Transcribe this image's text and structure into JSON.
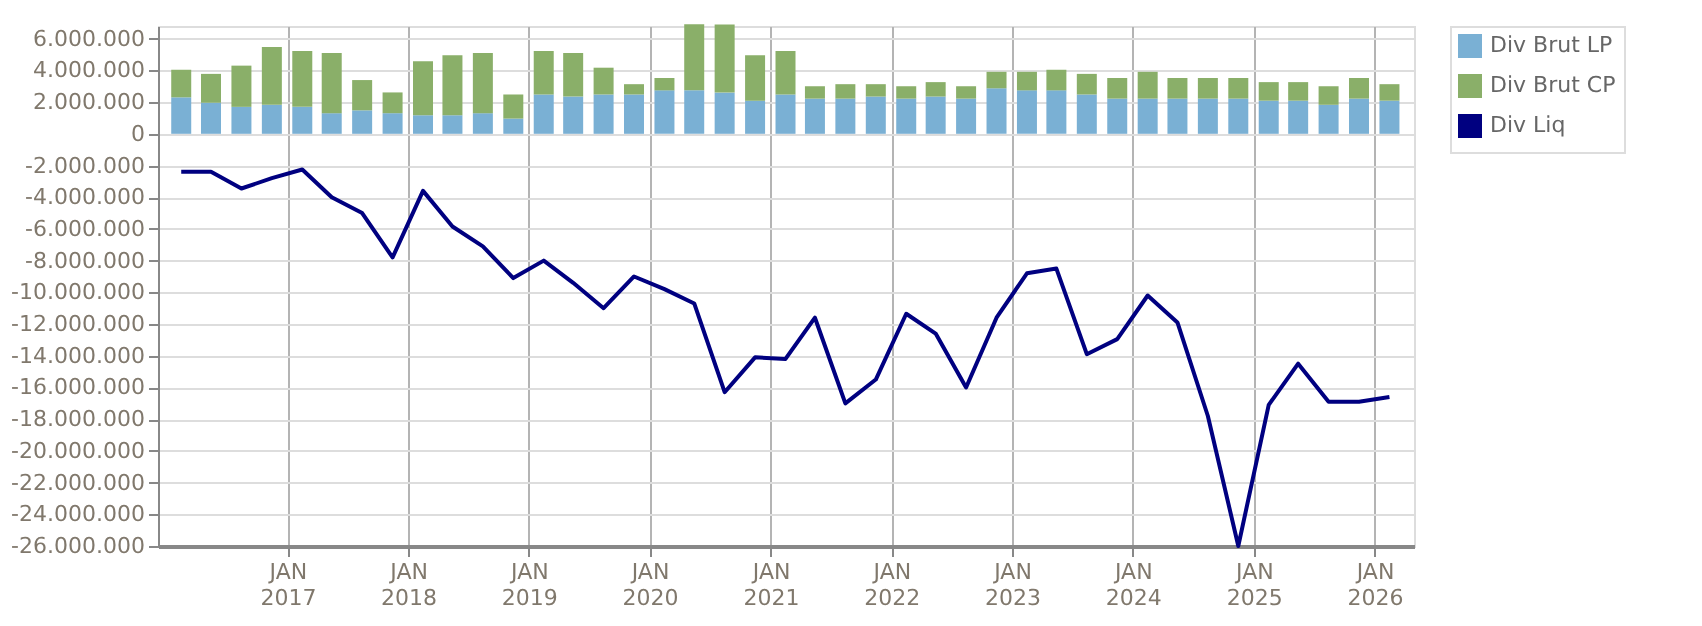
{
  "chart_data": {
    "type": "bar",
    "stacked": true,
    "x": [
      "2016-02-15",
      "2016-05-15",
      "2016-08-15",
      "2016-11-15",
      "2017-02-15",
      "2017-05-15",
      "2017-08-15",
      "2017-11-15",
      "2018-02-15",
      "2018-05-15",
      "2018-08-15",
      "2018-11-15",
      "2019-02-15",
      "2019-05-15",
      "2019-08-15",
      "2019-11-15",
      "2020-02-15",
      "2020-05-15",
      "2020-08-15",
      "2020-11-15",
      "2021-02-15",
      "2021-05-15",
      "2021-08-15",
      "2021-11-15",
      "2022-02-15",
      "2022-05-15",
      "2022-08-15",
      "2022-11-15",
      "2023-02-15",
      "2023-05-15",
      "2023-08-15",
      "2023-11-15",
      "2024-02-15",
      "2024-05-15",
      "2024-08-15",
      "2024-11-15",
      "2025-02-15",
      "2025-05-15",
      "2025-08-15",
      "2025-11-15",
      "2026-02-15"
    ],
    "series": [
      {
        "name": "Div Brut LP",
        "color": "#7ab0d4",
        "values": [
          2300000,
          1960000,
          1700000,
          1830000,
          1700000,
          1300000,
          1480000,
          1300000,
          1170000,
          1170000,
          1300000,
          960000,
          2480000,
          2350000,
          2480000,
          2480000,
          2740000,
          2740000,
          2600000,
          2090000,
          2480000,
          2220000,
          2220000,
          2350000,
          2220000,
          2350000,
          2220000,
          2870000,
          2740000,
          2740000,
          2480000,
          2220000,
          2220000,
          2220000,
          2220000,
          2220000,
          2090000,
          2090000,
          1830000,
          2220000,
          2090000
        ]
      },
      {
        "name": "Div Brut CP",
        "color": "#8aaf69",
        "values": [
          1740000,
          1820000,
          2600000,
          3650000,
          3520000,
          3790000,
          1910000,
          1310000,
          3400000,
          3790000,
          3790000,
          1520000,
          2740000,
          2740000,
          1690000,
          650000,
          780000,
          4170000,
          4300000,
          2870000,
          2740000,
          780000,
          910000,
          780000,
          780000,
          910000,
          780000,
          1040000,
          1170000,
          1300000,
          1300000,
          1300000,
          1690000,
          1300000,
          1300000,
          1300000,
          1170000,
          1170000,
          1170000,
          1300000,
          1040000
        ]
      },
      {
        "name": "Div Liq",
        "type": "line",
        "color": "#000080",
        "values": [
          -2400000,
          -2400000,
          -3450000,
          -2800000,
          -2250000,
          -4000000,
          -5000000,
          -7800000,
          -3600000,
          -5850000,
          -7100000,
          -9100000,
          -8000000,
          -9400000,
          -11000000,
          -9000000,
          -9800000,
          -10700000,
          -16300000,
          -14100000,
          -14200000,
          -11600000,
          -17000000,
          -15500000,
          -11350000,
          -12600000,
          -16000000,
          -11600000,
          -8800000,
          -8500000,
          -13900000,
          -12950000,
          -10200000,
          -11900000,
          -17800000,
          -26000000,
          -17100000,
          -14500000,
          -16900000,
          -16900000,
          -16600000
        ]
      }
    ],
    "xlim": [
      "2016-01-06",
      "2026-03-31"
    ],
    "xticks": [
      {
        "value": "2017-01-01",
        "label": "JAN 2017"
      },
      {
        "value": "2018-01-01",
        "label": "JAN 2018"
      },
      {
        "value": "2019-01-01",
        "label": "JAN 2019"
      },
      {
        "value": "2020-01-01",
        "label": "JAN 2020"
      },
      {
        "value": "2021-01-01",
        "label": "JAN 2021"
      },
      {
        "value": "2022-01-01",
        "label": "JAN 2022"
      },
      {
        "value": "2023-01-01",
        "label": "JAN 2023"
      },
      {
        "value": "2024-01-01",
        "label": "JAN 2024"
      },
      {
        "value": "2025-01-01",
        "label": "JAN 2025"
      },
      {
        "value": "2026-01-01",
        "label": "JAN 2026"
      }
    ],
    "ylim": [
      -26000000,
      6800000
    ],
    "yticks": [
      {
        "value": 6000000,
        "label": "6.000.000"
      },
      {
        "value": 4000000,
        "label": "4.000.000"
      },
      {
        "value": 2000000,
        "label": "2.000.000"
      },
      {
        "value": 0,
        "label": "0"
      },
      {
        "value": -2000000,
        "label": "-2.000.000"
      },
      {
        "value": -4000000,
        "label": "-4.000.000"
      },
      {
        "value": -6000000,
        "label": "-6.000.000"
      },
      {
        "value": -8000000,
        "label": "-8.000.000"
      },
      {
        "value": -10000000,
        "label": "-10.000.000"
      },
      {
        "value": -12000000,
        "label": "-12.000.000"
      },
      {
        "value": -14000000,
        "label": "-14.000.000"
      },
      {
        "value": -16000000,
        "label": "-16.000.000"
      },
      {
        "value": -18000000,
        "label": "-18.000.000"
      },
      {
        "value": -20000000,
        "label": "-20.000.000"
      },
      {
        "value": -22000000,
        "label": "-22.000.000"
      },
      {
        "value": -24000000,
        "label": "-24.000.000"
      },
      {
        "value": -26000000,
        "label": "-26.000.000"
      }
    ],
    "grid": true,
    "legend": "top right"
  }
}
